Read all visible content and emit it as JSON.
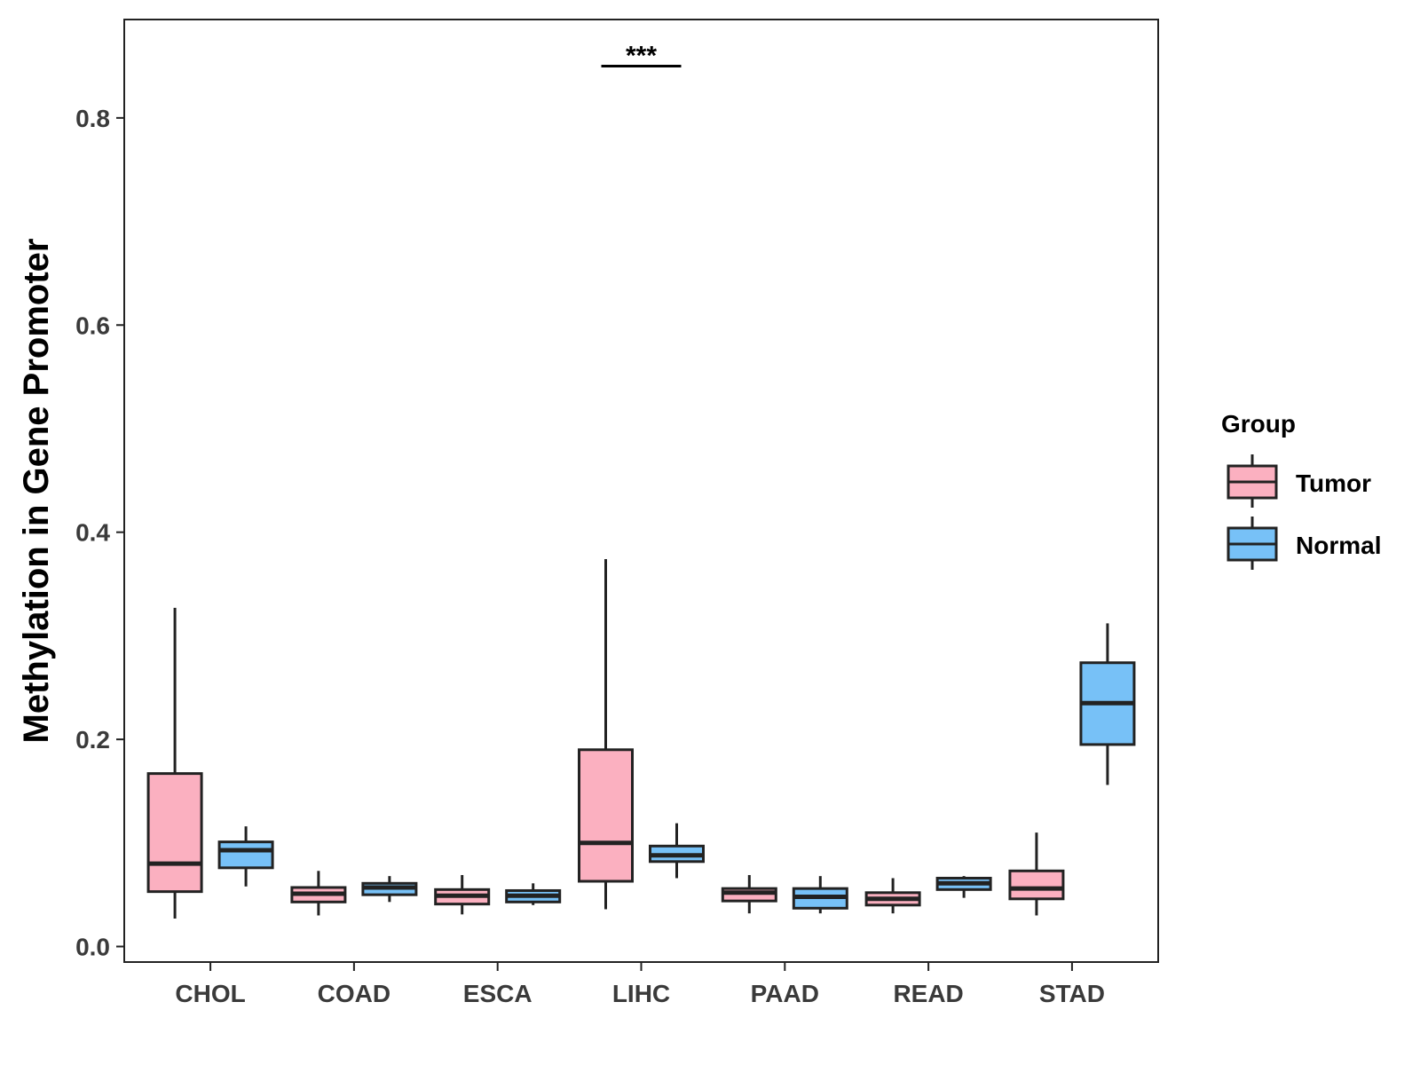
{
  "chart_data": {
    "type": "boxplot",
    "title": "",
    "xlabel": "",
    "ylabel": "Methylation in Gene Promoter",
    "ylim": [
      -0.015,
      0.895
    ],
    "yticks": [
      "0.0",
      "0.2",
      "0.4",
      "0.6",
      "0.8"
    ],
    "ytick_values": [
      0.0,
      0.2,
      0.4,
      0.6,
      0.8
    ],
    "categories": [
      "CHOL",
      "COAD",
      "ESCA",
      "LIHC",
      "PAAD",
      "READ",
      "STAD"
    ],
    "legend": {
      "title": "Group",
      "position": "right",
      "entries": [
        "Tumor",
        "Normal"
      ]
    },
    "colors": {
      "Tumor": "#fbb0c0",
      "Normal": "#77c1f7",
      "outline": "#222222"
    },
    "series": [
      {
        "name": "Tumor",
        "boxes": [
          {
            "category": "CHOL",
            "min": 0.027,
            "q1": 0.053,
            "median": 0.08,
            "q3": 0.167,
            "max": 0.327
          },
          {
            "category": "COAD",
            "min": 0.03,
            "q1": 0.043,
            "median": 0.051,
            "q3": 0.057,
            "max": 0.073
          },
          {
            "category": "ESCA",
            "min": 0.031,
            "q1": 0.041,
            "median": 0.049,
            "q3": 0.055,
            "max": 0.069
          },
          {
            "category": "LIHC",
            "min": 0.036,
            "q1": 0.063,
            "median": 0.1,
            "q3": 0.19,
            "max": 0.374
          },
          {
            "category": "PAAD",
            "min": 0.032,
            "q1": 0.044,
            "median": 0.052,
            "q3": 0.056,
            "max": 0.069
          },
          {
            "category": "READ",
            "min": 0.032,
            "q1": 0.04,
            "median": 0.046,
            "q3": 0.052,
            "max": 0.066
          },
          {
            "category": "STAD",
            "min": 0.03,
            "q1": 0.046,
            "median": 0.056,
            "q3": 0.073,
            "max": 0.11
          }
        ]
      },
      {
        "name": "Normal",
        "boxes": [
          {
            "category": "CHOL",
            "min": 0.058,
            "q1": 0.076,
            "median": 0.093,
            "q3": 0.101,
            "max": 0.116
          },
          {
            "category": "COAD",
            "min": 0.043,
            "q1": 0.05,
            "median": 0.057,
            "q3": 0.061,
            "max": 0.068
          },
          {
            "category": "ESCA",
            "min": 0.04,
            "q1": 0.043,
            "median": 0.049,
            "q3": 0.054,
            "max": 0.061
          },
          {
            "category": "LIHC",
            "min": 0.066,
            "q1": 0.082,
            "median": 0.088,
            "q3": 0.097,
            "max": 0.119
          },
          {
            "category": "PAAD",
            "min": 0.032,
            "q1": 0.037,
            "median": 0.048,
            "q3": 0.056,
            "max": 0.068
          },
          {
            "category": "READ",
            "min": 0.047,
            "q1": 0.055,
            "median": 0.061,
            "q3": 0.066,
            "max": 0.068
          },
          {
            "category": "STAD",
            "min": 0.156,
            "q1": 0.195,
            "median": 0.235,
            "q3": 0.274,
            "max": 0.312
          }
        ]
      }
    ],
    "annotations": [
      {
        "text": "***",
        "category": "LIHC",
        "y": 0.85
      }
    ]
  }
}
